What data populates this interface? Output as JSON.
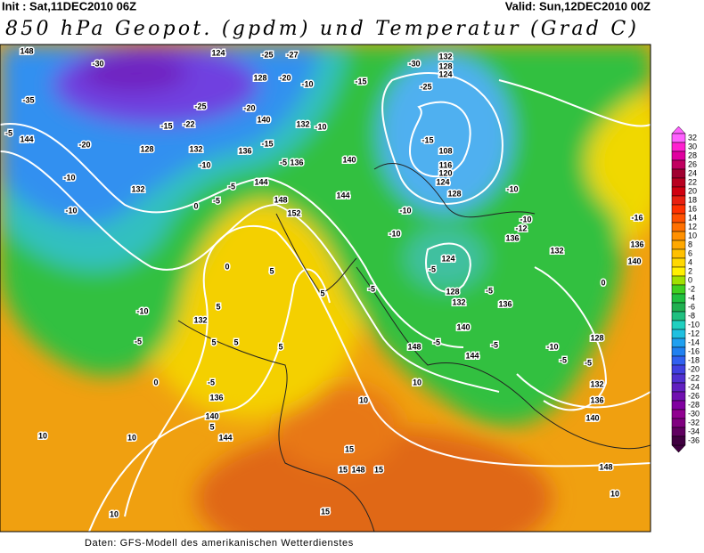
{
  "header": {
    "init": "Init : Sat,11DEC2010 06Z",
    "valid": "Valid: Sun,12DEC2010 00Z",
    "title": "850 hPa Geopot. (gpdm) und Temperatur (Grad C)"
  },
  "footer": "Daten: GFS-Modell des amerikanischen Wetterdienstes",
  "colorbar": {
    "ticks": [
      32,
      30,
      28,
      26,
      24,
      22,
      20,
      18,
      16,
      14,
      12,
      10,
      8,
      6,
      4,
      2,
      0,
      -2,
      -4,
      -6,
      -8,
      -10,
      -12,
      -14,
      -16,
      -18,
      -20,
      -22,
      -24,
      -26,
      -28,
      -30,
      -32,
      -34,
      -36
    ],
    "colors": [
      "#ff60ff",
      "#ff20d0",
      "#e000a0",
      "#c00060",
      "#a00030",
      "#b80020",
      "#d00010",
      "#e82010",
      "#ff3000",
      "#ff5000",
      "#ff7000",
      "#ff9000",
      "#ffa800",
      "#ffc000",
      "#ffd800",
      "#fff000",
      "#a0e000",
      "#40d020",
      "#20c040",
      "#20b050",
      "#20c080",
      "#20d0c0",
      "#20c0e0",
      "#20a0f0",
      "#2080f0",
      "#3060f0",
      "#4040e0",
      "#5030d0",
      "#6020c0",
      "#7010b0",
      "#8000a0",
      "#900090",
      "#800080",
      "#600060",
      "#400040"
    ]
  },
  "contour_labels": [
    "148",
    "-30",
    "124",
    "-25",
    "-27",
    "128",
    "-20",
    "-10",
    "-15",
    "-30",
    "132",
    "128",
    "124",
    "-25",
    "-35",
    "-25",
    "-20",
    "-15",
    "-22",
    "140",
    "132",
    "-10",
    "-5",
    "144",
    "-20",
    "128",
    "132",
    "-15",
    "-5",
    "136",
    "-10",
    "136",
    "140",
    "-15",
    "108",
    "116",
    "120",
    "124",
    "-10",
    "128",
    "-10",
    "132",
    "144",
    "148",
    "152",
    "0",
    "-5",
    "-5",
    "144",
    "-10",
    "-10",
    "-10",
    "-10",
    "-12",
    "136",
    "132",
    "140",
    "136",
    "-16",
    "124",
    "-5",
    "0",
    "5",
    "5",
    "-5",
    "128",
    "132",
    "136",
    "-5",
    "0",
    "-10",
    "132",
    "5",
    "5",
    "5",
    "5",
    "-5",
    "140",
    "-5",
    "148",
    "144",
    "-5",
    "-10",
    "-5",
    "-5",
    "128",
    "0",
    "-5",
    "136",
    "132",
    "136",
    "140",
    "10",
    "10",
    "5",
    "144",
    "140",
    "10",
    "10",
    "148",
    "148",
    "15",
    "15",
    "15",
    "10",
    "15",
    "10"
  ]
}
